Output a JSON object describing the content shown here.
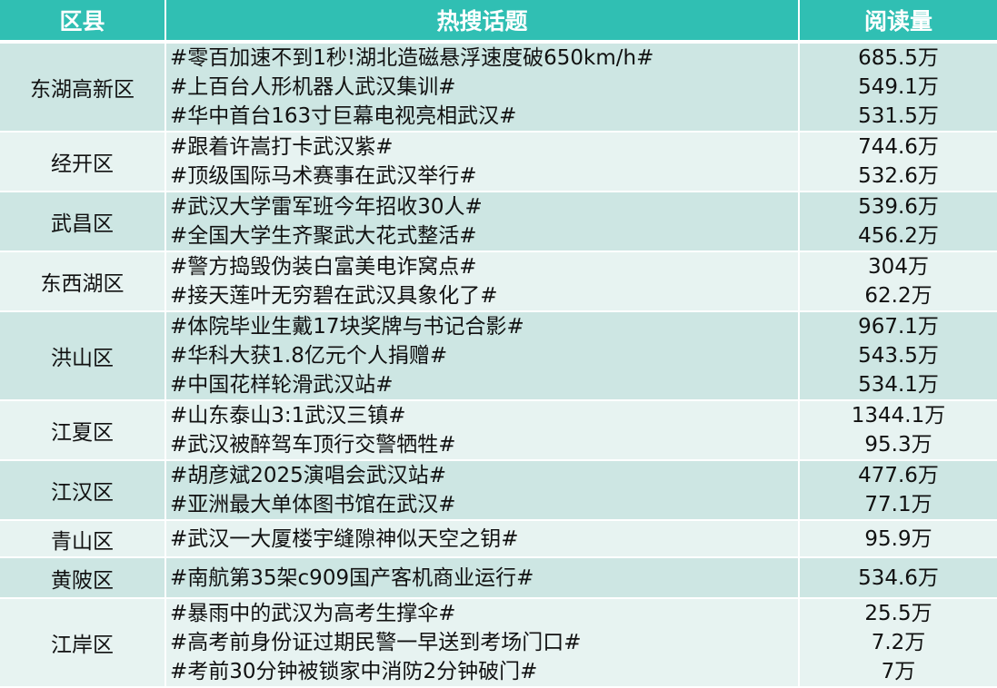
{
  "headers": [
    "区县",
    "热搜话题",
    "阅读量"
  ],
  "rows": [
    {
      "district": "东湖高新区",
      "topics": [
        "#零百加速不到1秒!湖北造磁悬浮速度破650km/h#",
        "#上百台人形机器人武汉集训#",
        "#华中首台163寸巨幕电视亮相武汉#"
      ],
      "reads": [
        "685.5万",
        "549.1万",
        "531.5万"
      ]
    },
    {
      "district": "经开区",
      "topics": [
        "#跟着许嵩打卡武汉紫#",
        "#顶级国际马术赛事在武汉举行#"
      ],
      "reads": [
        "744.6万",
        "532.6万"
      ]
    },
    {
      "district": "武昌区",
      "topics": [
        "#武汉大学雷军班今年招收30人#",
        "#全国大学生齐聚武大花式整活#"
      ],
      "reads": [
        "539.6万",
        "456.2万"
      ]
    },
    {
      "district": "东西湖区",
      "topics": [
        "#警方捣毁伪装白富美电诈窝点#",
        "#接天莲叶无穷碧在武汉具象化了#"
      ],
      "reads": [
        "304万",
        "62.2万"
      ]
    },
    {
      "district": "洪山区",
      "topics": [
        "#体院毕业生戴17块奖牌与书记合影#",
        "#华科大获1.8亿元个人捐赠#",
        "#中国花样轮滑武汉站#"
      ],
      "reads": [
        "967.1万",
        "543.5万",
        "534.1万"
      ]
    },
    {
      "district": "江夏区",
      "topics": [
        "#山东泰山3:1武汉三镇#",
        "#武汉被醉驾车顶行交警牺牲#"
      ],
      "reads": [
        "1344.1万",
        "95.3万"
      ]
    },
    {
      "district": "江汉区",
      "topics": [
        "#胡彦斌2025演唱会武汉站#",
        "#亚洲最大单体图书馆在武汉#"
      ],
      "reads": [
        "477.6万",
        "77.1万"
      ]
    },
    {
      "district": "青山区",
      "topics": [
        "#武汉一大厦楼宇缝隙神似天空之钥#"
      ],
      "reads": [
        "95.9万"
      ]
    },
    {
      "district": "黄陂区",
      "topics": [
        "#南航第35架c909国产客机商业运行#"
      ],
      "reads": [
        "534.6万"
      ]
    },
    {
      "district": "江岸区",
      "topics": [
        "#暴雨中的武汉为高考生撑伞#",
        "#高考前身份证过期民警一早送到考场门口#",
        "#考前30分钟被锁家中消防2分钟破门#"
      ],
      "reads": [
        "25.5万",
        "7.2万",
        "7万"
      ]
    }
  ],
  "colors": {
    "header": "#30bfb3",
    "row_odd": "#cde6e3",
    "row_even": "#e7f3f1"
  }
}
